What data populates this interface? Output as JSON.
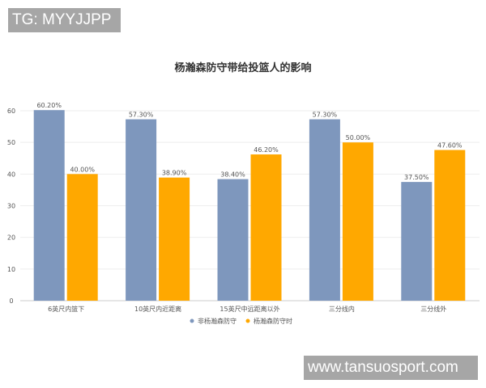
{
  "watermarks": {
    "top": "TG: MYYJJPP",
    "bottom": "www.tansuosport.com"
  },
  "chart_data": {
    "type": "bar",
    "title": "杨瀚森防守带给投篮人的影响",
    "categories": [
      "6英尺内篮下",
      "10英尺内近距离",
      "15英尺中远距离以外",
      "三分线内",
      "三分线外"
    ],
    "series": [
      {
        "name": "非杨瀚森防守",
        "color": "#7e97bd",
        "values": [
          60.2,
          57.3,
          38.4,
          57.3,
          37.5
        ],
        "labels": [
          "60.20%",
          "57.30%",
          "38.40%",
          "57.30%",
          "37.50%"
        ]
      },
      {
        "name": "杨瀚森防守时",
        "color": "#ffa800",
        "values": [
          40.0,
          38.9,
          46.2,
          50.0,
          47.6
        ],
        "labels": [
          "40.00%",
          "38.90%",
          "46.20%",
          "50.00%",
          "47.60%"
        ]
      }
    ],
    "ylim": [
      0,
      60
    ],
    "yticks": [
      "0",
      "10",
      "20",
      "30",
      "40",
      "50",
      "60"
    ],
    "grid": true,
    "legend": "bottom"
  }
}
